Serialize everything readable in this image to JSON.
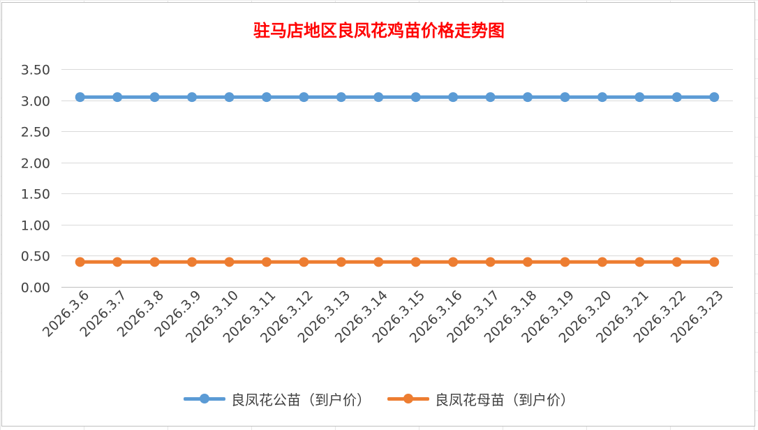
{
  "chart_data": {
    "type": "line",
    "title": "驻马店地区良凤花鸡苗价格走势图",
    "xlabel": "",
    "ylabel": "",
    "categories": [
      "2026.3.6",
      "2026.3.7",
      "2026.3.8",
      "2026.3.9",
      "2026.3.10",
      "2026.3.11",
      "2026.3.12",
      "2026.3.13",
      "2026.3.14",
      "2026.3.15",
      "2026.3.16",
      "2026.3.17",
      "2026.3.18",
      "2026.3.19",
      "2026.3.20",
      "2026.3.21",
      "2026.3.22",
      "2026.3.23"
    ],
    "ylim": [
      0,
      3.5
    ],
    "yticks": [
      "0.00",
      "0.50",
      "1.00",
      "1.50",
      "2.00",
      "2.50",
      "3.00",
      "3.50"
    ],
    "grid": true,
    "legend_position": "bottom",
    "series": [
      {
        "name": "良凤花公苗（到户价）",
        "color": "#5b9bd5",
        "values": [
          3.05,
          3.05,
          3.05,
          3.05,
          3.05,
          3.05,
          3.05,
          3.05,
          3.05,
          3.05,
          3.05,
          3.05,
          3.05,
          3.05,
          3.05,
          3.05,
          3.05,
          3.05
        ]
      },
      {
        "name": "良凤花母苗（到户价）",
        "color": "#ed7d31",
        "values": [
          0.4,
          0.4,
          0.4,
          0.4,
          0.4,
          0.4,
          0.4,
          0.4,
          0.4,
          0.4,
          0.4,
          0.4,
          0.4,
          0.4,
          0.4,
          0.4,
          0.4,
          0.4
        ]
      }
    ]
  }
}
